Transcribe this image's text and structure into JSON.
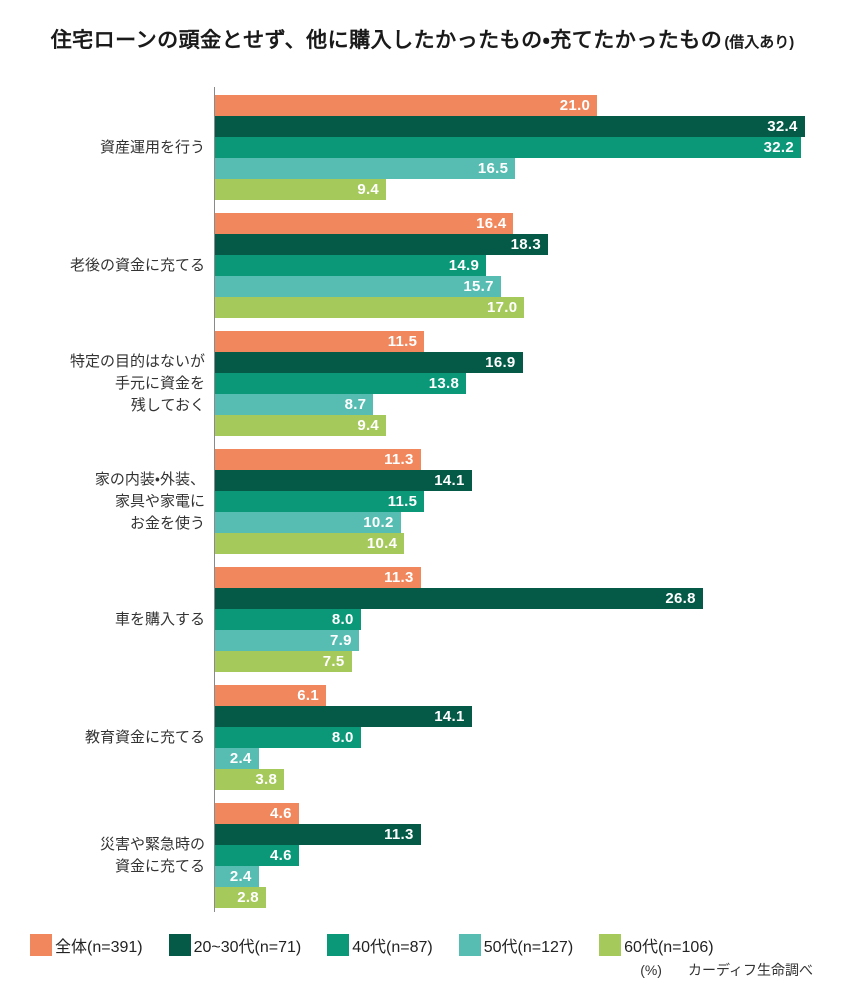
{
  "title": {
    "main": "住宅ローンの頭金とせず、他に購入したかったもの・充てたかったもの",
    "suffix": "(借入あり)"
  },
  "chart_data": {
    "type": "bar",
    "orientation": "horizontal",
    "unit": "%",
    "xlim": [
      0,
      33.3
    ],
    "grid": false,
    "legend_position": "bottom",
    "categories": [
      "資産運用を行う",
      "老後の資金に充てる",
      "特定の目的はないが\n手元に資金を\n残しておく",
      "家の内装・外装、\n家具や家電に\nお金を使う",
      "車を購入する",
      "教育資金に充てる",
      "災害や緊急時の\n資金に充てる"
    ],
    "series": [
      {
        "key": "all",
        "name": "全体",
        "legend_label": "全体(n=391)",
        "color": "#F0875D",
        "values": [
          21.0,
          16.4,
          11.5,
          11.3,
          11.3,
          6.1,
          4.6
        ]
      },
      {
        "key": "20-30s",
        "name": "20~30代",
        "legend_label": "20~30代(n=71)",
        "color": "#055A47",
        "values": [
          32.4,
          18.3,
          16.9,
          14.1,
          26.8,
          14.1,
          11.3
        ]
      },
      {
        "key": "40s",
        "name": "40代",
        "legend_label": "40代(n=87)",
        "color": "#0B9879",
        "values": [
          32.2,
          14.9,
          13.8,
          11.5,
          8.0,
          8.0,
          4.6
        ]
      },
      {
        "key": "50s",
        "name": "50代",
        "legend_label": "50代(n=127)",
        "color": "#57BDB3",
        "values": [
          16.5,
          15.7,
          8.7,
          10.2,
          7.9,
          2.4,
          2.4
        ]
      },
      {
        "key": "60s",
        "name": "60代",
        "legend_label": "60代(n=106)",
        "color": "#A6C95C",
        "values": [
          9.4,
          17.0,
          9.4,
          10.4,
          7.5,
          3.8,
          2.8
        ]
      }
    ]
  },
  "footer": {
    "unit_note": "(%)",
    "source": "カーディフ生命調べ"
  }
}
